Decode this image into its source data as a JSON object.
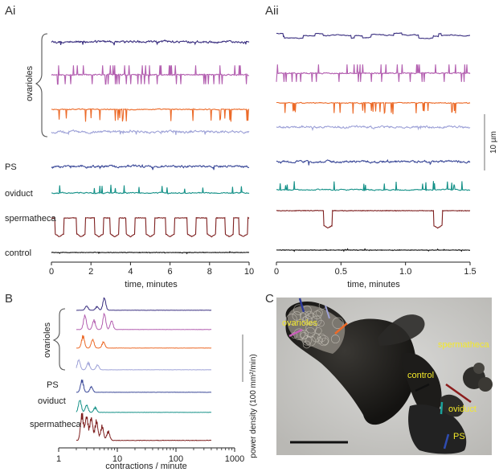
{
  "panels": {
    "ai": "Ai",
    "aii": "Aii",
    "b": "B",
    "c": "C"
  },
  "chart_data": [
    {
      "type": "line",
      "panel": "Ai",
      "xlabel": "time, minutes",
      "xlim": [
        0,
        10
      ],
      "xticks": [
        0,
        2,
        4,
        6,
        8,
        10
      ],
      "group_label": "ovarioles",
      "series": [
        {
          "name": "",
          "color": "#3a2f80",
          "style": "noisy"
        },
        {
          "name": "",
          "color": "#b35fb0",
          "style": "spikes"
        },
        {
          "name": "",
          "color": "#ec6a28",
          "style": "downspikes"
        },
        {
          "name": "",
          "color": "#9fa3d8",
          "style": "noisy"
        },
        {
          "name": "PS",
          "color": "#3c4a99",
          "style": "noisy"
        },
        {
          "name": "oviduct",
          "color": "#159188",
          "style": "bumps"
        },
        {
          "name": "spermatheca",
          "color": "#7e1f1f",
          "style": "contractions",
          "contraction_times": [
            0.4,
            1.5,
            2.4,
            3.2,
            4.0,
            5.0,
            6.0,
            7.1,
            8.1,
            9.0,
            9.7
          ]
        },
        {
          "name": "control",
          "color": "#111111",
          "style": "flat"
        }
      ]
    },
    {
      "type": "line",
      "panel": "Aii",
      "xlabel": "time, minutes",
      "xlim": [
        0,
        1.5
      ],
      "xticks": [
        0,
        0.5,
        1.0,
        1.5
      ],
      "scalebar_label": "10 µm",
      "series": [
        {
          "name": "",
          "color": "#3a2f80",
          "style": "steps"
        },
        {
          "name": "",
          "color": "#b35fb0",
          "style": "spikes"
        },
        {
          "name": "",
          "color": "#ec6a28",
          "style": "downspikes"
        },
        {
          "name": "",
          "color": "#9fa3d8",
          "style": "noisy"
        },
        {
          "name": "",
          "color": "#3c4a99",
          "style": "noisy"
        },
        {
          "name": "",
          "color": "#159188",
          "style": "bumps"
        },
        {
          "name": "",
          "color": "#7e1f1f",
          "style": "contractions",
          "contraction_times": [
            0.4,
            1.25
          ]
        },
        {
          "name": "",
          "color": "#111111",
          "style": "flat"
        }
      ]
    },
    {
      "type": "line",
      "panel": "B",
      "xlabel": "contractions / minute",
      "ylabel": "power density (100 mm²/min)",
      "xscale": "log",
      "xlim": [
        1,
        1000
      ],
      "xticks": [
        1,
        10,
        100,
        1000
      ],
      "group_label": "ovarioles",
      "series": [
        {
          "name": "",
          "color": "#3a2f80",
          "peaks": [
            [
              6.0,
              1.0
            ],
            [
              3.0,
              0.35
            ],
            [
              4.5,
              0.3
            ]
          ]
        },
        {
          "name": "",
          "color": "#b35fb0",
          "peaks": [
            [
              2.8,
              0.9
            ],
            [
              6.0,
              1.0
            ],
            [
              8.0,
              0.55
            ],
            [
              4.0,
              0.6
            ]
          ]
        },
        {
          "name": "",
          "color": "#ec6a28",
          "peaks": [
            [
              2.6,
              1.0
            ],
            [
              3.8,
              0.7
            ],
            [
              5.8,
              0.5
            ]
          ]
        },
        {
          "name": "",
          "color": "#9fa3d8",
          "peaks": [
            [
              2.2,
              0.8
            ],
            [
              3.2,
              0.6
            ],
            [
              4.6,
              0.4
            ]
          ]
        },
        {
          "name": "PS",
          "color": "#3c4a99",
          "peaks": [
            [
              2.5,
              1.0
            ],
            [
              3.6,
              0.45
            ]
          ]
        },
        {
          "name": "oviduct",
          "color": "#159188",
          "peaks": [
            [
              2.3,
              1.0
            ],
            [
              3.0,
              0.6
            ],
            [
              4.2,
              0.4
            ]
          ]
        },
        {
          "name": "spermatheca",
          "color": "#7e1f1f",
          "peaks": [
            [
              2.5,
              1.0
            ],
            [
              3.0,
              0.9
            ],
            [
              3.6,
              0.85
            ],
            [
              4.4,
              0.75
            ],
            [
              5.5,
              0.55
            ],
            [
              7.0,
              0.35
            ]
          ]
        }
      ]
    }
  ],
  "photo": {
    "labels": {
      "ovarioles": "ovarioles",
      "spermatheca": "spermatheca",
      "control": "control",
      "oviduct": "oviduct",
      "ps": "PS"
    },
    "label_color": "#f3e92a"
  }
}
